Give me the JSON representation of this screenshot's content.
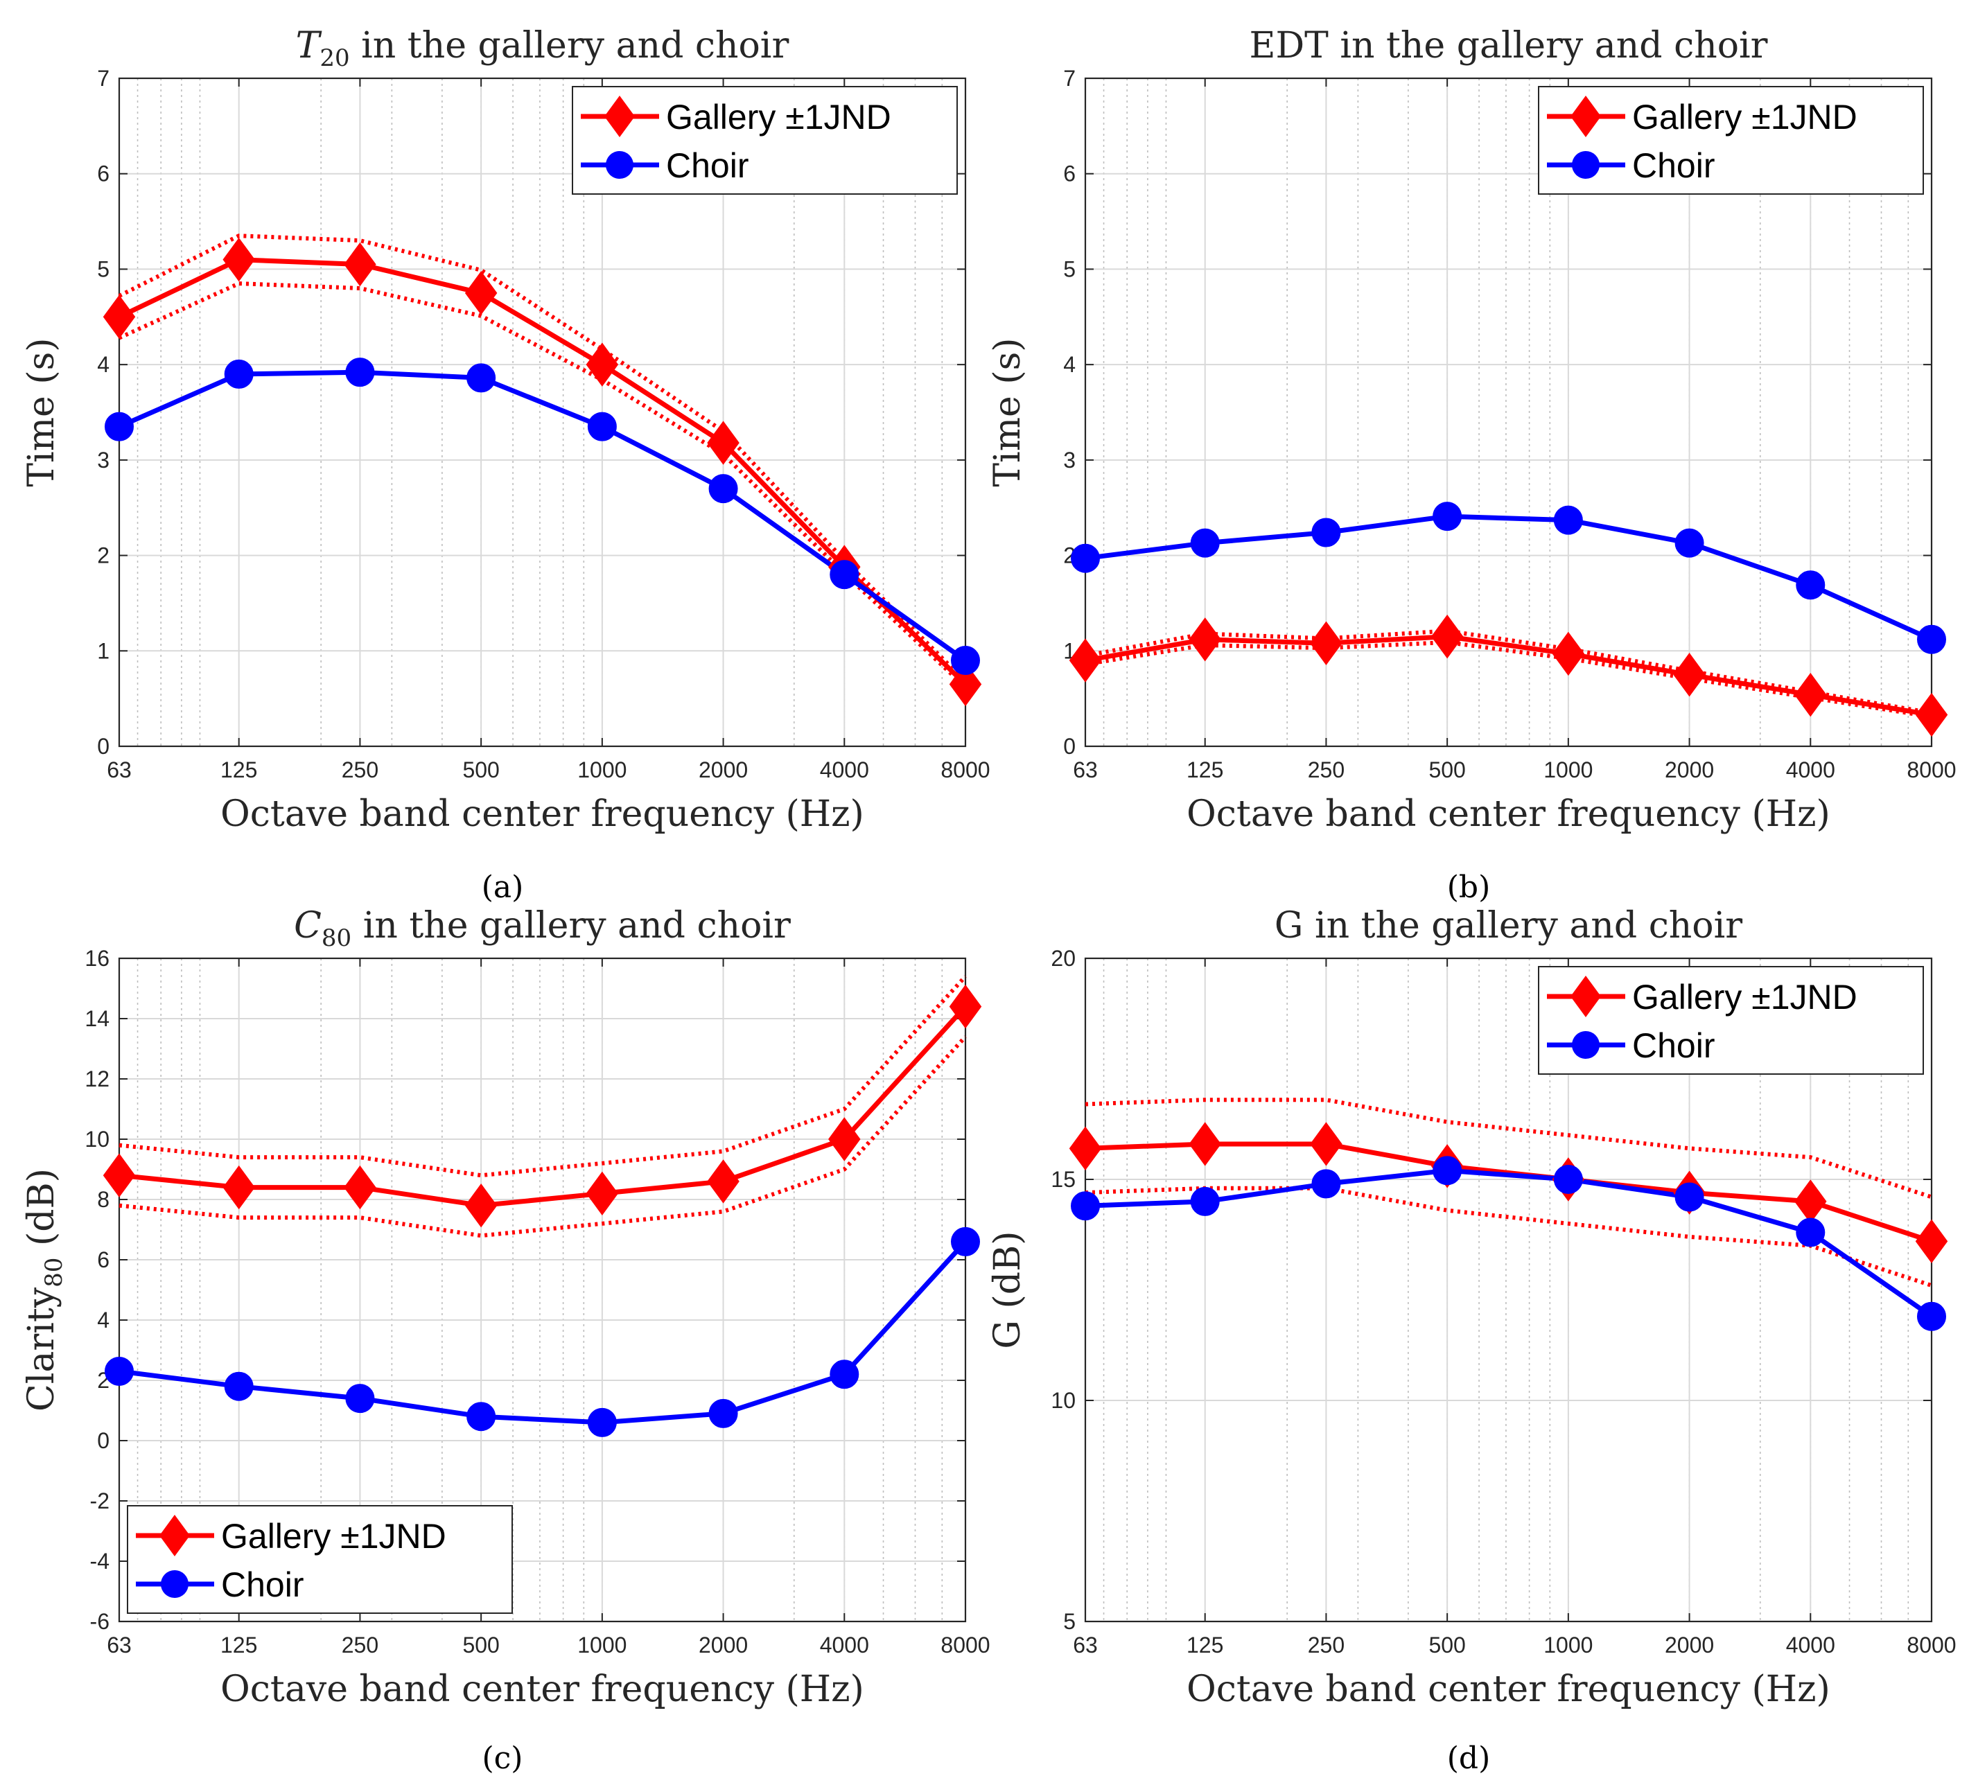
{
  "figure": {
    "panel_labels": [
      "(a)",
      "(b)",
      "(c)",
      "(d)"
    ]
  },
  "colors": {
    "gallery": "#ff0000",
    "choir": "#0000ff",
    "grid_major": "#d9d9d9",
    "grid_minor": "#bdbdbd",
    "axis": "#262626"
  },
  "chart_data": [
    {
      "id": "a",
      "type": "line",
      "title_main": "T",
      "title_sub": "20",
      "title_rest": " in the gallery and choir",
      "xlabel": "Octave band center frequency (Hz)",
      "ylabel": "Time (s)",
      "xscale": "log",
      "xlim": [
        63,
        8000
      ],
      "ylim": [
        0,
        7
      ],
      "yticks": [
        "0",
        "1",
        "2",
        "3",
        "4",
        "5",
        "6",
        "7"
      ],
      "ytick_values": [
        0,
        1,
        2,
        3,
        4,
        5,
        6,
        7
      ],
      "categories": [
        "63",
        "125",
        "250",
        "500",
        "1000",
        "2000",
        "4000",
        "8000"
      ],
      "x": [
        63,
        125,
        250,
        500,
        1000,
        2000,
        4000,
        8000
      ],
      "legend_position": "top-right",
      "series": [
        {
          "name": "Gallery ±1JND",
          "marker": "diamond",
          "values": [
            4.5,
            5.1,
            5.05,
            4.75,
            4.0,
            3.18,
            1.88,
            0.65
          ]
        },
        {
          "name": "Gallery upper JND",
          "style": "dotted",
          "values": [
            4.72,
            5.35,
            5.3,
            4.99,
            4.16,
            3.3,
            1.95,
            0.68
          ]
        },
        {
          "name": "Gallery lower JND",
          "style": "dotted",
          "values": [
            4.28,
            4.85,
            4.8,
            4.51,
            3.84,
            3.06,
            1.81,
            0.62
          ]
        },
        {
          "name": "Choir",
          "marker": "circle",
          "values": [
            3.35,
            3.9,
            3.92,
            3.86,
            3.35,
            2.7,
            1.8,
            0.9
          ]
        }
      ]
    },
    {
      "id": "b",
      "type": "line",
      "title_main": "EDT",
      "title_sub": "",
      "title_rest": " in the gallery and choir",
      "xlabel": "Octave band center frequency (Hz)",
      "ylabel": "Time (s)",
      "xscale": "log",
      "xlim": [
        63,
        8000
      ],
      "ylim": [
        0,
        7
      ],
      "yticks": [
        "0",
        "1",
        "2",
        "3",
        "4",
        "5",
        "6",
        "7"
      ],
      "ytick_values": [
        0,
        1,
        2,
        3,
        4,
        5,
        6,
        7
      ],
      "categories": [
        "63",
        "125",
        "250",
        "500",
        "1000",
        "2000",
        "4000",
        "8000"
      ],
      "x": [
        63,
        125,
        250,
        500,
        1000,
        2000,
        4000,
        8000
      ],
      "legend_position": "top-right",
      "series": [
        {
          "name": "Gallery ±1JND",
          "marker": "diamond",
          "values": [
            0.9,
            1.12,
            1.08,
            1.15,
            0.97,
            0.75,
            0.54,
            0.33
          ]
        },
        {
          "name": "Gallery upper JND",
          "style": "dotted",
          "values": [
            0.95,
            1.18,
            1.13,
            1.21,
            1.02,
            0.79,
            0.57,
            0.35
          ]
        },
        {
          "name": "Gallery lower JND",
          "style": "dotted",
          "values": [
            0.86,
            1.06,
            1.03,
            1.09,
            0.92,
            0.71,
            0.51,
            0.31
          ]
        },
        {
          "name": "Choir",
          "marker": "circle",
          "values": [
            1.97,
            2.13,
            2.24,
            2.41,
            2.37,
            2.13,
            1.69,
            1.12
          ]
        }
      ]
    },
    {
      "id": "c",
      "type": "line",
      "title_main": "C",
      "title_sub": "80",
      "title_rest": " in the gallery and choir",
      "xlabel": "Octave band center frequency (Hz)",
      "ylabel_main": "Clarity",
      "ylabel_sub": "80",
      "ylabel_rest": " (dB)",
      "xscale": "log",
      "xlim": [
        63,
        8000
      ],
      "ylim": [
        -6,
        16
      ],
      "yticks": [
        "-6",
        "-4",
        "-2",
        "0",
        "2",
        "4",
        "6",
        "8",
        "10",
        "12",
        "14",
        "16"
      ],
      "ytick_values": [
        -6,
        -4,
        -2,
        0,
        2,
        4,
        6,
        8,
        10,
        12,
        14,
        16
      ],
      "categories": [
        "63",
        "125",
        "250",
        "500",
        "1000",
        "2000",
        "4000",
        "8000"
      ],
      "x": [
        63,
        125,
        250,
        500,
        1000,
        2000,
        4000,
        8000
      ],
      "legend_position": "bottom-left",
      "series": [
        {
          "name": "Gallery ±1JND",
          "marker": "diamond",
          "values": [
            8.8,
            8.4,
            8.4,
            7.8,
            8.2,
            8.6,
            10.0,
            14.4
          ]
        },
        {
          "name": "Gallery upper JND",
          "style": "dotted",
          "values": [
            9.8,
            9.4,
            9.4,
            8.8,
            9.2,
            9.6,
            11.0,
            15.4
          ]
        },
        {
          "name": "Gallery lower JND",
          "style": "dotted",
          "values": [
            7.8,
            7.4,
            7.4,
            6.8,
            7.2,
            7.6,
            9.0,
            13.4
          ]
        },
        {
          "name": "Choir",
          "marker": "circle",
          "values": [
            2.3,
            1.8,
            1.4,
            0.8,
            0.6,
            0.9,
            2.2,
            6.6
          ]
        }
      ]
    },
    {
      "id": "d",
      "type": "line",
      "title_main": "G",
      "title_sub": "",
      "title_rest": " in the gallery and choir",
      "xlabel": "Octave band center frequency (Hz)",
      "ylabel": "G (dB)",
      "xscale": "log",
      "xlim": [
        63,
        8000
      ],
      "ylim": [
        5,
        20
      ],
      "yticks": [
        "5",
        "10",
        "15",
        "20"
      ],
      "ytick_values": [
        5,
        10,
        15,
        20
      ],
      "categories": [
        "63",
        "125",
        "250",
        "500",
        "1000",
        "2000",
        "4000",
        "8000"
      ],
      "x": [
        63,
        125,
        250,
        500,
        1000,
        2000,
        4000,
        8000
      ],
      "legend_position": "top-right",
      "series": [
        {
          "name": "Gallery ±1JND",
          "marker": "diamond",
          "values": [
            15.7,
            15.8,
            15.8,
            15.3,
            15.0,
            14.7,
            14.5,
            13.6
          ]
        },
        {
          "name": "Gallery upper JND",
          "style": "dotted",
          "values": [
            16.7,
            16.8,
            16.8,
            16.3,
            16.0,
            15.7,
            15.5,
            14.6
          ]
        },
        {
          "name": "Gallery lower JND",
          "style": "dotted",
          "values": [
            14.7,
            14.8,
            14.8,
            14.3,
            14.0,
            13.7,
            13.5,
            12.6
          ]
        },
        {
          "name": "Choir",
          "marker": "circle",
          "values": [
            14.4,
            14.5,
            14.9,
            15.2,
            15.0,
            14.6,
            13.8,
            11.9
          ]
        }
      ]
    }
  ]
}
